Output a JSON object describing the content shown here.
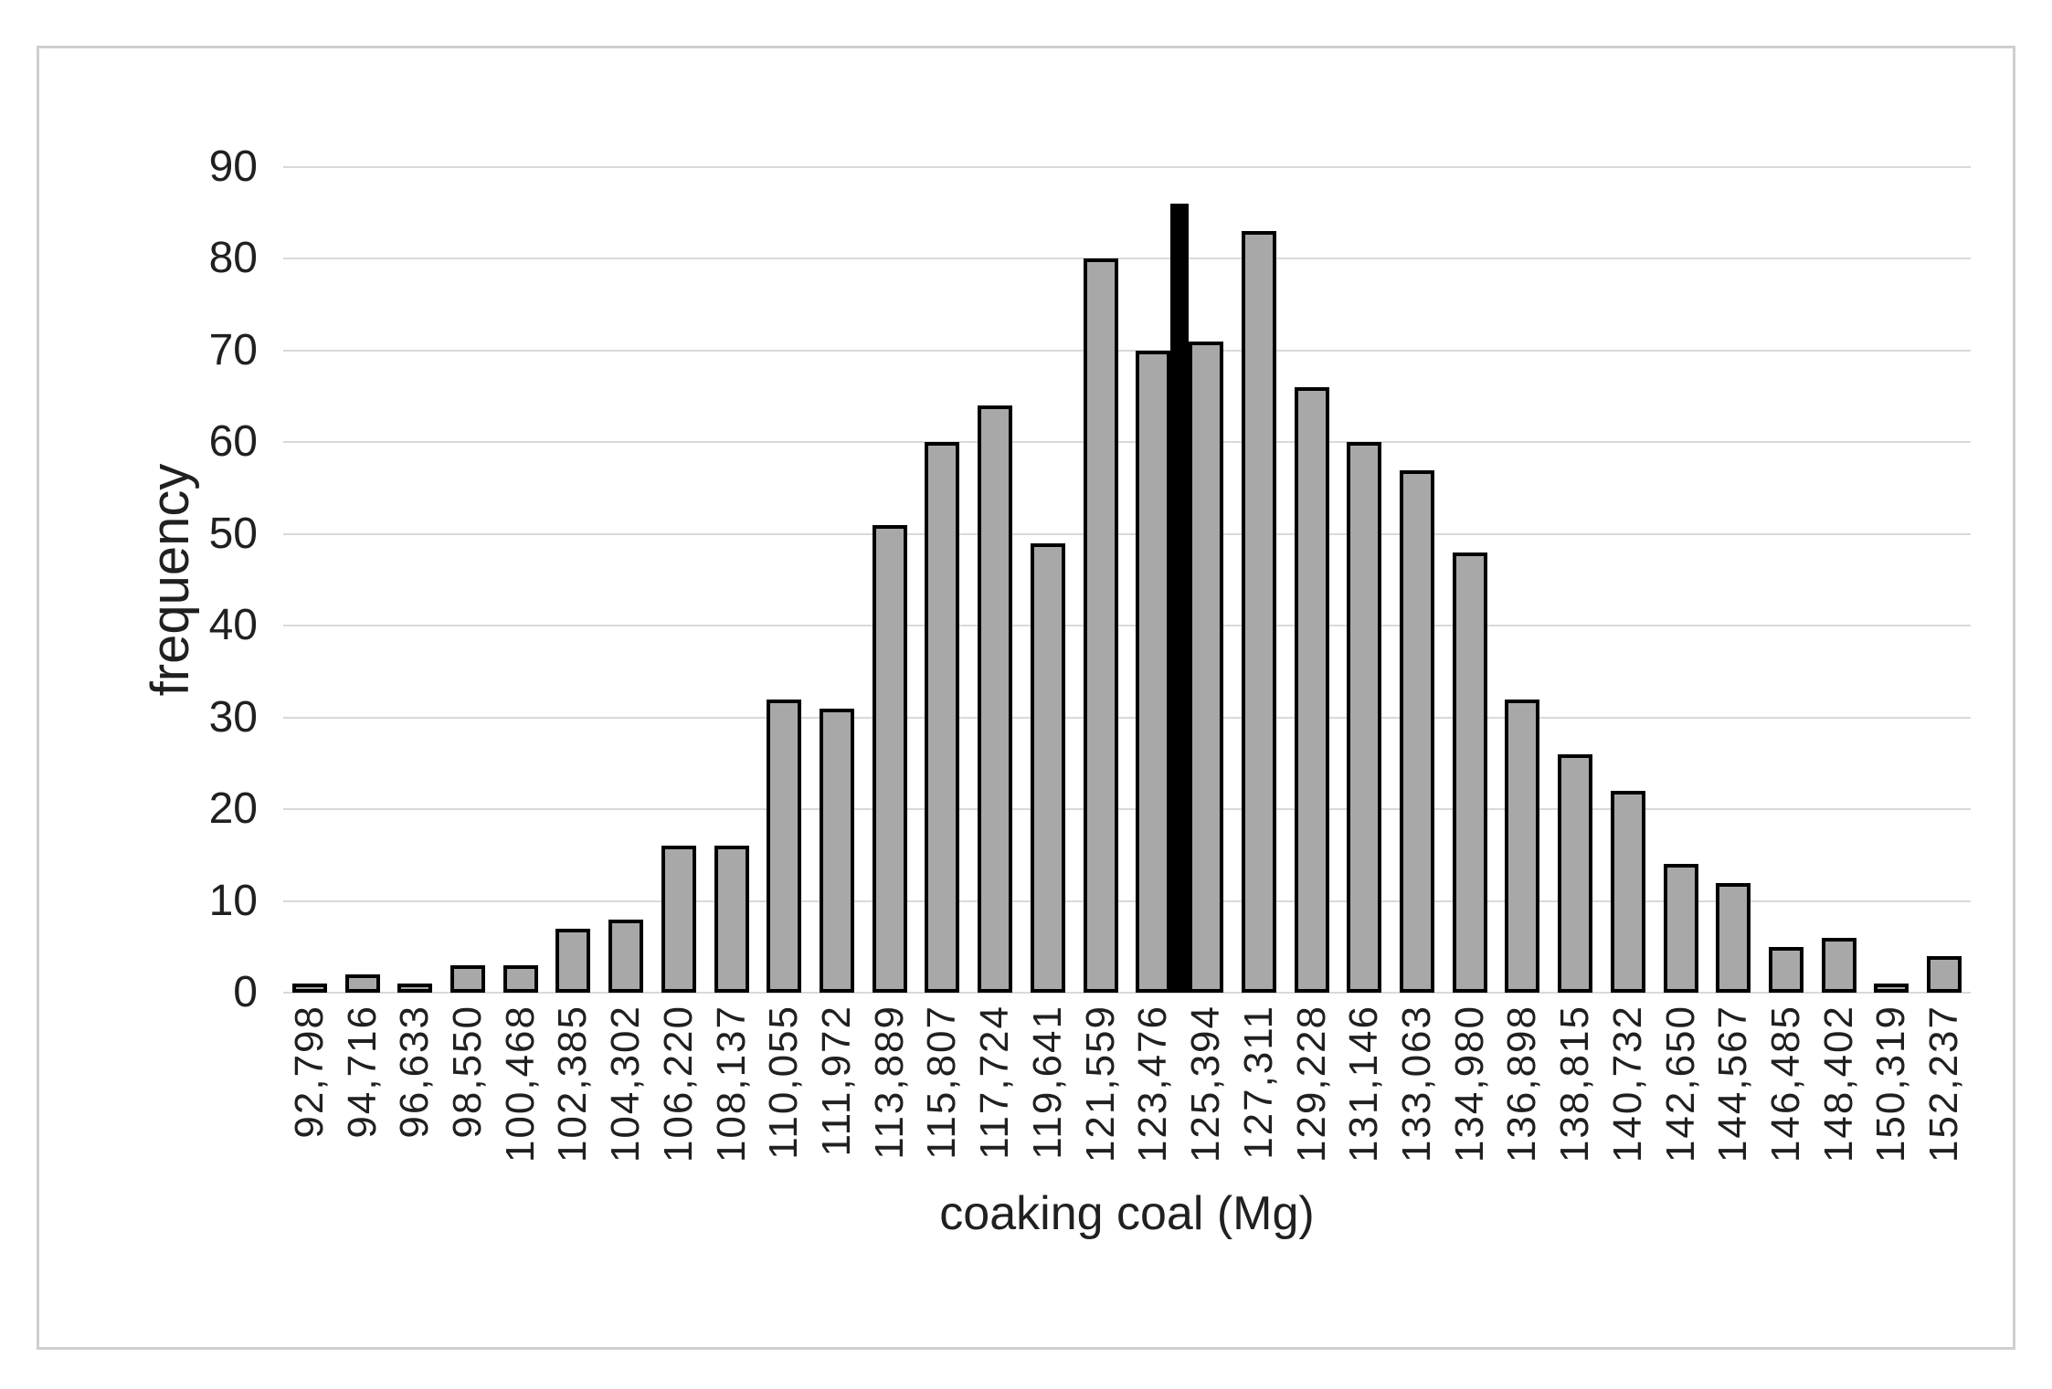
{
  "chart_data": {
    "type": "bar",
    "title": "",
    "xlabel": "coaking coal (Mg)",
    "ylabel": "frequency",
    "categories": [
      "92,798",
      "94,716",
      "96,633",
      "98,550",
      "100,468",
      "102,385",
      "104,302",
      "106,220",
      "108,137",
      "110,055",
      "111,972",
      "113,889",
      "115,807",
      "117,724",
      "119,641",
      "121,559",
      "123,476",
      "125,394",
      "127,311",
      "129,228",
      "131,146",
      "133,063",
      "134,980",
      "136,898",
      "138,815",
      "140,732",
      "142,650",
      "144,567",
      "146,485",
      "148,402",
      "150,319",
      "152,237"
    ],
    "values": [
      1,
      2,
      1,
      3,
      3,
      7,
      8,
      16,
      16,
      32,
      31,
      51,
      60,
      64,
      49,
      80,
      70,
      71,
      83,
      66,
      60,
      57,
      48,
      32,
      26,
      22,
      14,
      12,
      5,
      6,
      1,
      4
    ],
    "marker": {
      "value": 86,
      "between_categories": [
        "123,476",
        "125,394"
      ],
      "description": "thin solid black vertical marker bar"
    },
    "ylim": [
      0,
      90
    ],
    "y_ticks": [
      0,
      10,
      20,
      30,
      40,
      50,
      60,
      70,
      80,
      90
    ],
    "grid": "horizontal",
    "legend": "none",
    "colors": {
      "bar_fill": "#a8a8a8",
      "bar_border": "#000000",
      "marker": "#000000",
      "gridline": "#d9d9d9",
      "frame_border": "#cfcfcf",
      "text": "#202020",
      "background": "#ffffff"
    }
  }
}
